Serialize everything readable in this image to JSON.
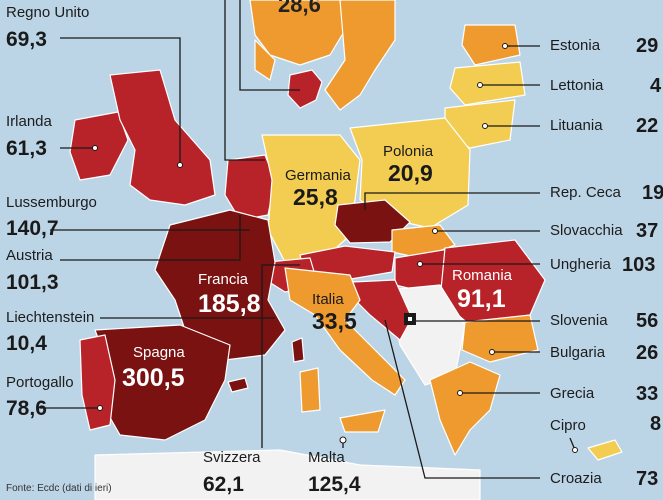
{
  "colors": {
    "sea": "#bcd5e6",
    "dark_red": "#7a1212",
    "red": "#b8232a",
    "orange": "#ef9a2e",
    "yellow": "#f3cd52",
    "white_zone": "#f2f2f2"
  },
  "countries_left": [
    {
      "name": "Regno Unito",
      "value": "69,3"
    },
    {
      "name": "Irlanda",
      "value": "61,3"
    },
    {
      "name": "Lussemburgo",
      "value": "140,7"
    },
    {
      "name": "Austria",
      "value": "101,3"
    },
    {
      "name": "Liechtenstein",
      "value": "10,4"
    },
    {
      "name": "Portogallo",
      "value": "78,6"
    }
  ],
  "countries_right": [
    {
      "name": "Estonia",
      "value": "29"
    },
    {
      "name": "Lettonia",
      "value": "4"
    },
    {
      "name": "Lituania",
      "value": "22"
    },
    {
      "name": "Rep. Ceca",
      "value": "19"
    },
    {
      "name": "Slovacchia",
      "value": "37"
    },
    {
      "name": "Ungheria",
      "value": "103"
    },
    {
      "name": "Slovenia",
      "value": "56"
    },
    {
      "name": "Bulgaria",
      "value": "26"
    },
    {
      "name": "Grecia",
      "value": "33"
    },
    {
      "name": "Cipro",
      "value": "8"
    },
    {
      "name": "Croazia",
      "value": "73"
    }
  ],
  "countries_on_map": {
    "germania": {
      "name": "Germania",
      "value": "25,8"
    },
    "polonia": {
      "name": "Polonia",
      "value": "20,9"
    },
    "francia": {
      "name": "Francia",
      "value": "185,8"
    },
    "spagna": {
      "name": "Spagna",
      "value": "300,5"
    },
    "italia": {
      "name": "Italia",
      "value": "33,5"
    },
    "romania": {
      "name": "Romania",
      "value": "91,1"
    },
    "top_cut": {
      "value": "28,6"
    }
  },
  "countries_bottom": [
    {
      "name": "Svizzera",
      "value": "62,1"
    },
    {
      "name": "Malta",
      "value": "125,4"
    }
  ],
  "source": "Fonte: Ecdc (dati di ieri)"
}
